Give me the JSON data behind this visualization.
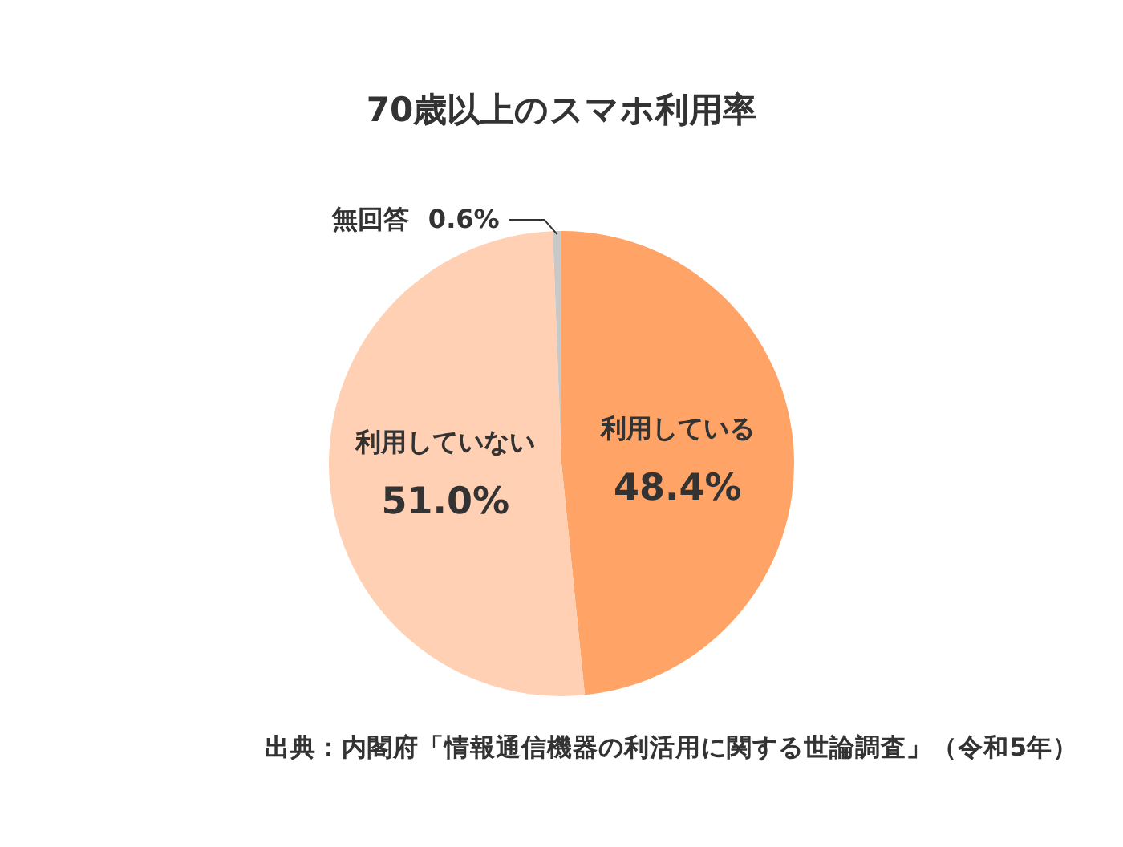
{
  "chart_data": {
    "type": "pie",
    "title": "70歳以上のスマホ利用率",
    "categories": [
      "利用している",
      "利用していない",
      "無回答"
    ],
    "values": [
      48.4,
      51.0,
      0.6
    ],
    "colors": [
      "#ffa466",
      "#ffd0b3",
      "#c8c8c8"
    ],
    "value_labels": [
      "48.4%",
      "51.0%",
      "0.6%"
    ],
    "annotations": [
      "出典：内閣府「情報通信機器の利活用に関する世論調査」（令和5年）"
    ]
  }
}
